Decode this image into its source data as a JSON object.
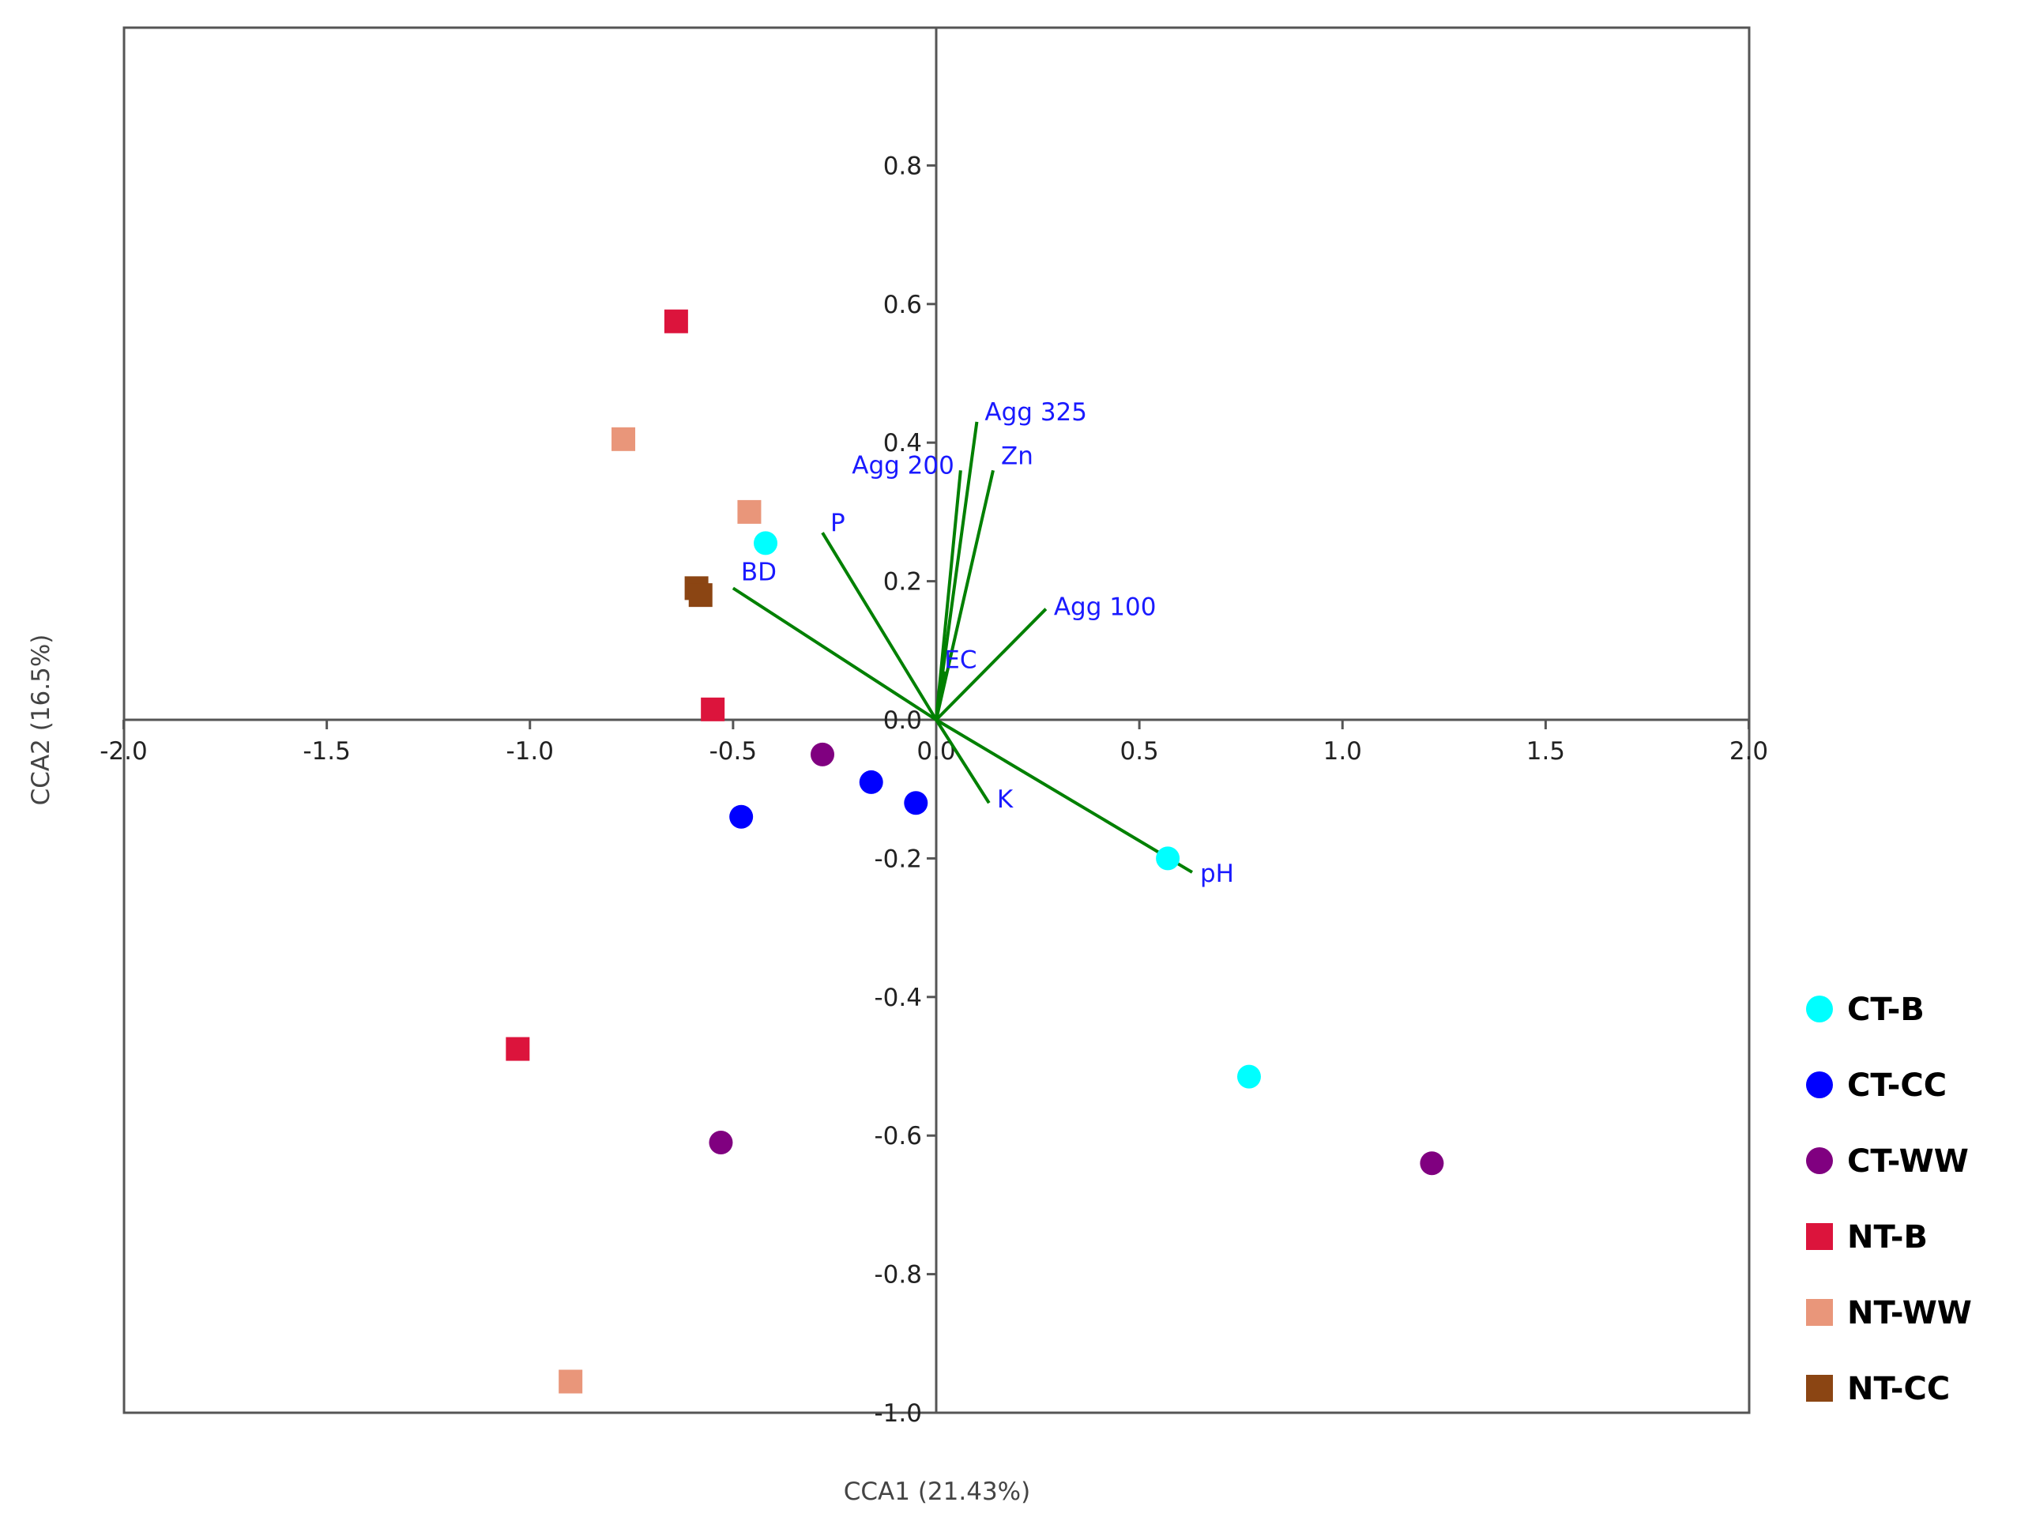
{
  "chart_data": {
    "type": "scatter",
    "title": "",
    "xlabel": "CCA1 (21.43%)",
    "ylabel": "CCA2 (16.5%)",
    "xlim": [
      -2.0,
      2.0
    ],
    "ylim": [
      -1.0,
      1.0
    ],
    "x_ticks": [
      -2.0,
      -1.5,
      -1.0,
      -0.5,
      0.0,
      0.5,
      1.0,
      1.5,
      2.0
    ],
    "y_ticks": [
      0.8,
      0.6,
      0.4,
      0.2,
      0.0,
      -0.2,
      -0.4,
      -0.6,
      -0.8,
      -1.0
    ],
    "x_tick_labels": [
      "-2.0",
      "-1.5",
      "-1.0",
      "-0.5",
      "0.0",
      "0.5",
      "1.0",
      "1.5",
      "2.0"
    ],
    "y_tick_labels": [
      "0.8",
      "0.6",
      "0.4",
      "0.2",
      "0.0",
      "-0.2",
      "-0.4",
      "-0.6",
      "-0.8",
      "-1.0"
    ],
    "grid": false,
    "legend_position": "right",
    "series": [
      {
        "name": "CT-B",
        "marker": "circle",
        "color": "#00FFFF",
        "points": [
          [
            -0.42,
            0.255
          ],
          [
            0.57,
            -0.2
          ],
          [
            0.77,
            -0.515
          ]
        ]
      },
      {
        "name": "CT-CC",
        "marker": "circle",
        "color": "#0000FF",
        "points": [
          [
            -0.48,
            -0.14
          ],
          [
            -0.16,
            -0.09
          ],
          [
            -0.05,
            -0.12
          ]
        ]
      },
      {
        "name": "CT-WW",
        "marker": "circle",
        "color": "#800080",
        "points": [
          [
            -0.28,
            -0.05
          ],
          [
            -0.53,
            -0.61
          ],
          [
            1.22,
            -0.64
          ]
        ]
      },
      {
        "name": "NT-B",
        "marker": "square",
        "color": "#DC143C",
        "points": [
          [
            -0.64,
            0.575
          ],
          [
            -0.55,
            0.015
          ],
          [
            -1.03,
            -0.475
          ]
        ]
      },
      {
        "name": "NT-WW",
        "marker": "square",
        "color": "#E9967A",
        "points": [
          [
            -0.77,
            0.405
          ],
          [
            -0.46,
            0.3
          ],
          [
            -0.9,
            -0.955
          ]
        ]
      },
      {
        "name": "NT-CC",
        "marker": "square",
        "color": "#8B4513",
        "points": [
          [
            -0.59,
            0.19
          ],
          [
            -0.58,
            0.18
          ]
        ]
      }
    ],
    "vectors": [
      {
        "name": "Agg 325",
        "x": 0.1,
        "y": 0.43
      },
      {
        "name": "Agg 200",
        "x": 0.06,
        "y": 0.36
      },
      {
        "name": "Zn",
        "x": 0.14,
        "y": 0.36
      },
      {
        "name": "P",
        "x": -0.28,
        "y": 0.27
      },
      {
        "name": "BD",
        "x": -0.5,
        "y": 0.19
      },
      {
        "name": "Agg 100",
        "x": 0.27,
        "y": 0.16
      },
      {
        "name": "EC",
        "x": 0.02,
        "y": 0.07
      },
      {
        "name": "K",
        "x": 0.13,
        "y": -0.12
      },
      {
        "name": "pH",
        "x": 0.63,
        "y": -0.22
      }
    ],
    "vector_color": "#008000",
    "vector_label_color": "#1a1aff"
  }
}
